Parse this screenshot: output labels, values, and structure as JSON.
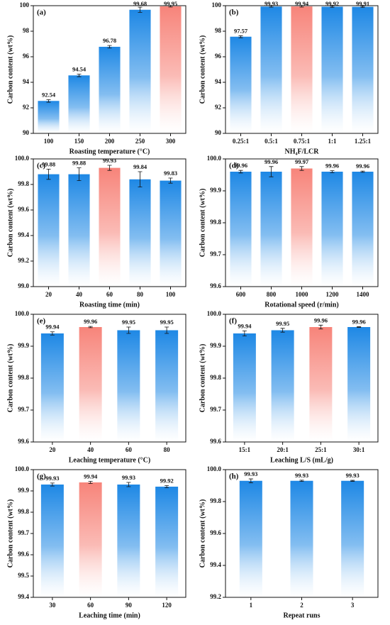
{
  "chart_data": [
    {
      "type": "bar",
      "label": "(a)",
      "y_label": "Carbon content (wt%)",
      "x_label": "Roasting temperature (°C)",
      "categories": [
        "100",
        "150",
        "200",
        "250",
        "300"
      ],
      "values": [
        92.54,
        94.54,
        96.78,
        99.68,
        99.95
      ],
      "errors": [
        0.1,
        0.1,
        0.1,
        0.2,
        0.05
      ],
      "colors": [
        "#1e88e5",
        "#1e88e5",
        "#1e88e5",
        "#1e88e5",
        "#f7847a"
      ],
      "ylim": [
        90,
        100
      ],
      "yticks": [
        90,
        92,
        94,
        96,
        98,
        100
      ]
    },
    {
      "type": "bar",
      "label": "(b)",
      "y_label": "Carbon content (wt%)",
      "x_label": "NH₄F/LCR",
      "categories": [
        "0.25:1",
        "0.5:1",
        "0.75:1",
        "1:1",
        "1.25:1"
      ],
      "values": [
        97.57,
        99.93,
        99.94,
        99.92,
        99.91
      ],
      "errors": [
        0.08,
        0.05,
        0.05,
        0.05,
        0.05
      ],
      "colors": [
        "#1e88e5",
        "#1e88e5",
        "#f7847a",
        "#1e88e5",
        "#1e88e5"
      ],
      "ylim": [
        90,
        100
      ],
      "yticks": [
        90,
        92,
        94,
        96,
        98,
        100
      ]
    },
    {
      "type": "bar",
      "label": "(c)",
      "y_label": "Carbon content (wt%)",
      "x_label": "Roasting time (min)",
      "categories": [
        "20",
        "40",
        "60",
        "80",
        "100"
      ],
      "values": [
        99.88,
        99.88,
        99.93,
        99.84,
        99.83
      ],
      "errors": [
        0.04,
        0.05,
        0.02,
        0.06,
        0.02
      ],
      "colors": [
        "#1e88e5",
        "#1e88e5",
        "#f7847a",
        "#1e88e5",
        "#1e88e5"
      ],
      "ylim": [
        99.0,
        100.0
      ],
      "yticks": [
        {
          "value": 99.0,
          "label": "99.0"
        },
        99.2,
        99.4,
        99.6,
        99.8,
        {
          "value": 100.0,
          "label": "100.0"
        }
      ]
    },
    {
      "type": "bar",
      "label": "(d)",
      "y_label": "Carbon content (wt%)",
      "x_label": "Rotational speed (r/min)",
      "categories": [
        "600",
        "800",
        "1000",
        "1200",
        "1400"
      ],
      "values": [
        99.96,
        99.96,
        99.97,
        99.96,
        99.96
      ],
      "errors": [
        0.004,
        0.016,
        0.006,
        0.003,
        0.002
      ],
      "colors": [
        "#1e88e5",
        "#1e88e5",
        "#f7847a",
        "#1e88e5",
        "#1e88e5"
      ],
      "ylim": [
        99.6,
        100.0
      ],
      "yticks": [
        99.6,
        99.7,
        99.8,
        99.9,
        {
          "value": 100.0,
          "label": "100.0"
        }
      ]
    },
    {
      "type": "bar",
      "label": "(e)",
      "y_label": "Carbon content (wt%)",
      "x_label": "Leaching temperature (°C)",
      "categories": [
        "20",
        "40",
        "60",
        "80"
      ],
      "values": [
        99.94,
        99.96,
        99.95,
        99.95
      ],
      "errors": [
        0.005,
        0.002,
        0.01,
        0.01
      ],
      "colors": [
        "#1e88e5",
        "#f7847a",
        "#1e88e5",
        "#1e88e5"
      ],
      "ylim": [
        99.6,
        100.0
      ],
      "yticks": [
        99.6,
        99.7,
        99.8,
        99.9,
        {
          "value": 100.0,
          "label": "100.0"
        }
      ]
    },
    {
      "type": "bar",
      "label": "(f)",
      "y_label": "Carbon content (wt%)",
      "x_label": "Leaching L/S (mL/g)",
      "categories": [
        "15:1",
        "20:1",
        "25:1",
        "30:1"
      ],
      "values": [
        99.94,
        99.95,
        99.96,
        99.96
      ],
      "errors": [
        0.008,
        0.006,
        0.006,
        0.001
      ],
      "colors": [
        "#1e88e5",
        "#1e88e5",
        "#f7847a",
        "#1e88e5"
      ],
      "ylim": [
        99.6,
        100.0
      ],
      "yticks": [
        99.6,
        99.7,
        99.8,
        99.9,
        {
          "value": 100.0,
          "label": "100.0"
        }
      ]
    },
    {
      "type": "bar",
      "label": "(g)",
      "y_label": "Carbon content (wt%)",
      "x_label": "Leaching time (min)",
      "categories": [
        "30",
        "60",
        "90",
        "120"
      ],
      "values": [
        99.93,
        99.94,
        99.93,
        99.92
      ],
      "errors": [
        0.007,
        0.005,
        0.01,
        0.005
      ],
      "colors": [
        "#1e88e5",
        "#f7847a",
        "#1e88e5",
        "#1e88e5"
      ],
      "ylim": [
        99.4,
        100.0
      ],
      "yticks": [
        99.4,
        99.5,
        99.6,
        99.7,
        99.8,
        99.9,
        {
          "value": 100.0,
          "label": "100.0"
        }
      ]
    },
    {
      "type": "bar",
      "label": "(h)",
      "y_label": "Carbon content (wt%)",
      "x_label": "Repeat runs",
      "categories": [
        "1",
        "2",
        "3"
      ],
      "values": [
        99.93,
        99.93,
        99.93
      ],
      "errors": [
        0.012,
        0.004,
        0.003
      ],
      "colors": [
        "#1e88e5",
        "#1e88e5",
        "#1e88e5"
      ],
      "ylim": [
        99.2,
        100.0
      ],
      "yticks": [
        99.2,
        99.4,
        99.6,
        99.8,
        {
          "value": 100.0,
          "label": "100.0"
        }
      ]
    }
  ]
}
